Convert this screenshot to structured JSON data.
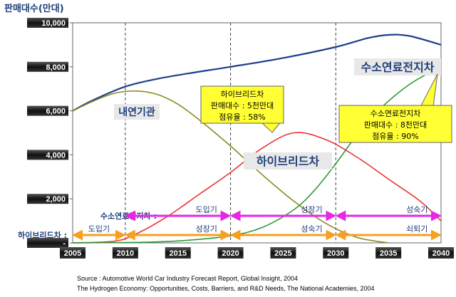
{
  "chart_data": {
    "type": "line",
    "ylabel": "판매대수(만대)",
    "ylim": [
      0,
      10000
    ],
    "xlim": [
      2005,
      2040
    ],
    "x_ticks": [
      "2005",
      "2010",
      "2015",
      "2020",
      "2025",
      "2030",
      "2035",
      "2040"
    ],
    "y_ticks": [
      "-",
      "2,000",
      "4,000",
      "6,000",
      "8,000",
      "10,000"
    ],
    "grid": false,
    "series": [
      {
        "name": "total",
        "color": "#1f3f8a",
        "x": [
          2005,
          2007,
          2010,
          2013,
          2016,
          2020,
          2025,
          2030,
          2033,
          2035,
          2037,
          2040
        ],
        "y": [
          6000,
          6500,
          7100,
          7450,
          7700,
          8000,
          8400,
          8900,
          9300,
          9450,
          9400,
          9000
        ]
      },
      {
        "name": "내연기관",
        "color": "#8a8a20",
        "x": [
          2005,
          2007,
          2009,
          2011,
          2013,
          2015,
          2017,
          2020,
          2023,
          2026,
          2029,
          2032,
          2035
        ],
        "y": [
          6000,
          6450,
          6800,
          6900,
          6750,
          6300,
          5600,
          4400,
          3100,
          1900,
          900,
          250,
          0
        ]
      },
      {
        "name": "하이브리드차",
        "color": "#ee3333",
        "x": [
          2005,
          2009,
          2011,
          2014,
          2017,
          2020,
          2023,
          2026,
          2029,
          2032,
          2035,
          2038,
          2040
        ],
        "y": [
          0,
          80,
          400,
          1200,
          2200,
          3200,
          4300,
          5000,
          4700,
          3900,
          2900,
          1900,
          1000
        ]
      },
      {
        "name": "수소연료전지차",
        "color": "#2f9a3a",
        "x": [
          2005,
          2012,
          2016,
          2020,
          2023,
          2026,
          2028,
          2030,
          2032,
          2034,
          2037,
          2040
        ],
        "y": [
          0,
          30,
          120,
          320,
          700,
          1500,
          2400,
          3600,
          4900,
          6000,
          7200,
          8000
        ]
      }
    ],
    "vlines": [
      2010,
      2020,
      2030
    ],
    "labels": {
      "ice": "내연기관",
      "hybrid": "하이브리드차",
      "fcev": "수소연료전지차"
    },
    "callouts": [
      {
        "lines": [
          "하이브리드차",
          "판매대수 : 5천만대",
          "점유율 : 58%"
        ]
      },
      {
        "lines": [
          "수소연료전지차",
          "판매대수 : 8천만대",
          "점유율 : 90%"
        ]
      }
    ],
    "phases": {
      "fcev": {
        "label": "수소연료전지차 :",
        "color": "#e628e6",
        "segments": [
          {
            "from": 2010,
            "to": 2020,
            "label": "도입기"
          },
          {
            "from": 2020,
            "to": 2030,
            "label": "성장기"
          },
          {
            "from": 2030,
            "to": 2040,
            "label": "성숙기"
          }
        ]
      },
      "hybrid": {
        "label": "하이브리드차 :",
        "color": "#f5a020",
        "segments": [
          {
            "from": 2005,
            "to": 2010,
            "label": "도입기"
          },
          {
            "from": 2010,
            "to": 2020,
            "label": "성장기"
          },
          {
            "from": 2020,
            "to": 2030,
            "label": "성숙기"
          },
          {
            "from": 2030,
            "to": 2040,
            "label": "쇠퇴기"
          }
        ]
      }
    },
    "source": [
      "Source : Automotive World Car Industry Forecast Report, Global Insight, 2004",
      "The Hydrogen Economy: Opportunities, Costs, Barriers, and R&D Needs, The National Academies, 2004"
    ]
  }
}
